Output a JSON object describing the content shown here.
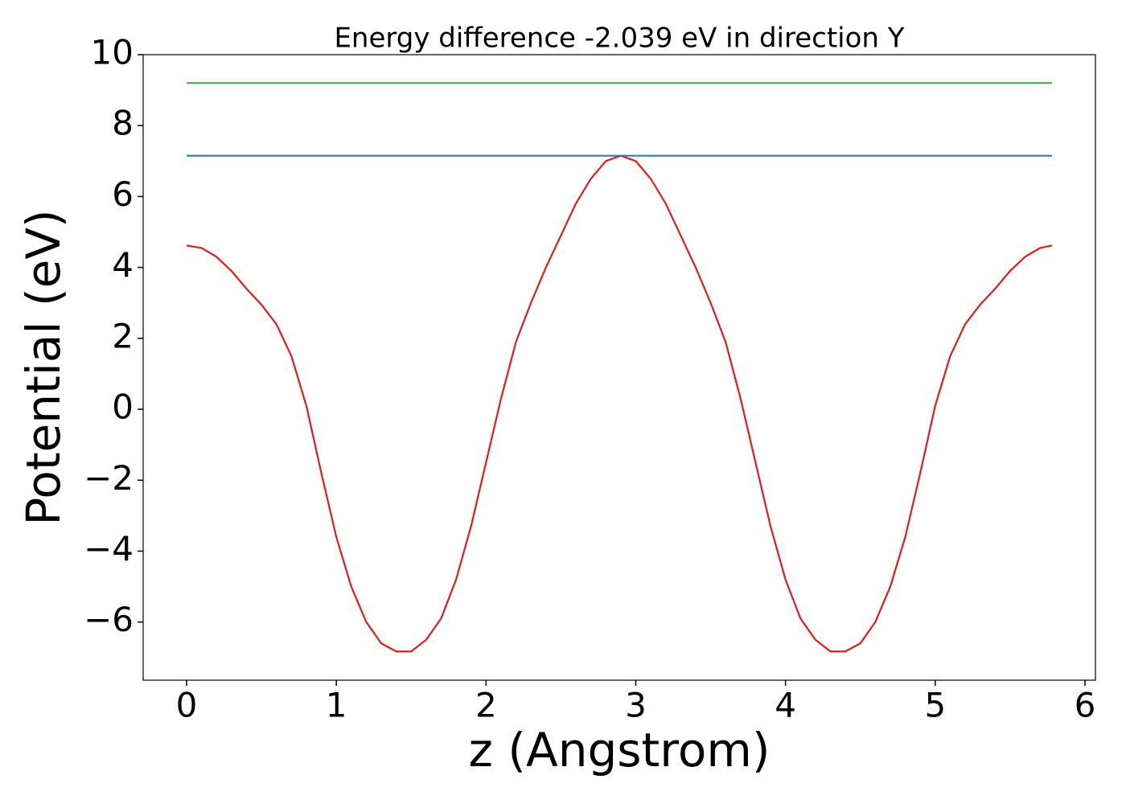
{
  "chart_data": {
    "type": "line",
    "title": "Energy difference -2.039 eV in direction Y",
    "xlabel": "z (Angstrom)",
    "ylabel": "Potential (eV)",
    "xlim": [
      -0.29,
      6.07
    ],
    "ylim": [
      -7.64,
      10
    ],
    "xticks": [
      0,
      1,
      2,
      3,
      4,
      5,
      6
    ],
    "yticks": [
      {
        "value": -6,
        "label": "−6"
      },
      {
        "value": -4,
        "label": "−4"
      },
      {
        "value": -2,
        "label": "−2"
      },
      0,
      2,
      4,
      6,
      8,
      10
    ],
    "series": [
      {
        "color": "#e41a1c",
        "x": [
          0,
          0.1,
          0.2,
          0.3,
          0.4,
          0.5,
          0.6,
          0.7,
          0.8,
          0.9,
          1.0,
          1.1,
          1.2,
          1.3,
          1.4,
          1.5,
          1.6,
          1.7,
          1.8,
          1.9,
          2.0,
          2.1,
          2.2,
          2.3,
          2.4,
          2.5,
          2.6,
          2.7,
          2.8,
          2.9,
          3.0,
          3.1,
          3.2,
          3.3,
          3.4,
          3.5,
          3.6,
          3.7,
          3.8,
          3.9,
          4.0,
          4.1,
          4.2,
          4.3,
          4.4,
          4.5,
          4.6,
          4.7,
          4.8,
          4.9,
          5.0,
          5.1,
          5.2,
          5.3,
          5.4,
          5.5,
          5.6,
          5.7,
          5.78
        ],
        "values": [
          4.62,
          4.55,
          4.3,
          3.9,
          3.4,
          2.95,
          2.4,
          1.5,
          0.1,
          -1.8,
          -3.6,
          -5.0,
          -6.0,
          -6.6,
          -6.83,
          -6.83,
          -6.5,
          -5.9,
          -4.8,
          -3.3,
          -1.5,
          0.3,
          1.9,
          3.0,
          4.0,
          4.9,
          5.8,
          6.5,
          7.0,
          7.15,
          7.0,
          6.5,
          5.8,
          4.9,
          4.0,
          3.0,
          1.9,
          0.3,
          -1.5,
          -3.3,
          -4.8,
          -5.9,
          -6.5,
          -6.83,
          -6.83,
          -6.6,
          -6.0,
          -5.0,
          -3.6,
          -1.8,
          0.1,
          1.5,
          2.4,
          2.95,
          3.4,
          3.9,
          4.3,
          4.55,
          4.62
        ]
      },
      {
        "color": "#3a78a8",
        "x": [
          0,
          5.78
        ],
        "values": [
          7.15,
          7.15
        ]
      },
      {
        "color": "#4daf4a",
        "x": [
          0,
          5.78
        ],
        "values": [
          9.2,
          9.2
        ]
      }
    ]
  }
}
